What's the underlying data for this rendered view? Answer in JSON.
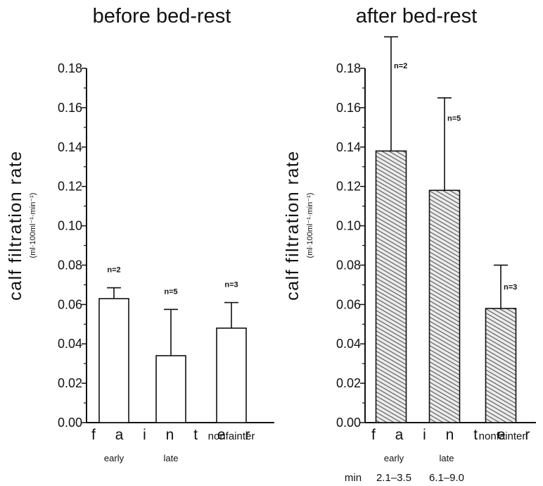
{
  "colors": {
    "axis": "#111111",
    "bar_before": "#ffffff",
    "bar_after_hatch": "#555555"
  },
  "group_label": "f a i n t e r",
  "min_label": "min",
  "chart_data": [
    {
      "type": "bar",
      "title": "before bed-rest",
      "ylabel": "calf filtration rate",
      "ylabel_unit": "(ml·100ml⁻¹·min⁻¹)",
      "ylim": [
        0,
        0.18
      ],
      "yticks": [
        "0.00",
        "0.02",
        "0.04",
        "0.06",
        "0.08",
        "0.10",
        "0.12",
        "0.14",
        "0.16",
        "0.18"
      ],
      "categories": [
        "early",
        "late",
        "nonfainter"
      ],
      "values": [
        0.063,
        0.034,
        0.048
      ],
      "error": [
        0.0055,
        0.0235,
        0.013
      ],
      "n_labels": [
        "n=2",
        "n=5",
        "n=3"
      ],
      "fill": "open"
    },
    {
      "type": "bar",
      "title": "after bed-rest",
      "ylabel": "calf filtration rate",
      "ylabel_unit": "(ml·100ml⁻¹·min⁻¹)",
      "ylim": [
        0,
        0.18
      ],
      "yticks": [
        "0.00",
        "0.02",
        "0.04",
        "0.06",
        "0.08",
        "0.10",
        "0.12",
        "0.14",
        "0.16",
        "0.18"
      ],
      "categories": [
        "early",
        "late",
        "nonfainter"
      ],
      "category_ranges": [
        "2.1–3.5",
        "6.1–9.0",
        ""
      ],
      "values": [
        0.138,
        0.118,
        0.058
      ],
      "error": [
        0.058,
        0.047,
        0.022
      ],
      "n_labels": [
        "n=2",
        "n=5",
        "n=3"
      ],
      "fill": "hatched"
    }
  ]
}
